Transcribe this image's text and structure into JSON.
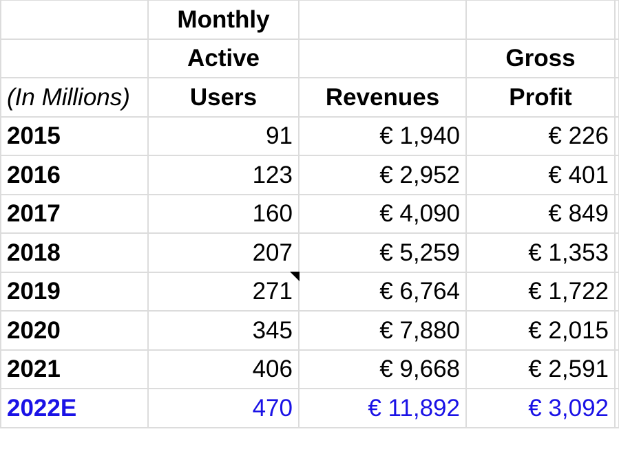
{
  "header": {
    "units_label": "(In Millions)",
    "columns": [
      {
        "line1": "Monthly",
        "line2": "Active",
        "line3": "Users"
      },
      {
        "line1": "",
        "line2": "",
        "line3": "Revenues"
      },
      {
        "line1": "",
        "line2": "Gross",
        "line3": "Profit"
      }
    ]
  },
  "rows": [
    {
      "year": "2015",
      "mau": "91",
      "revenues": "€ 1,940",
      "gross_profit": "€ 226"
    },
    {
      "year": "2016",
      "mau": "123",
      "revenues": "€ 2,952",
      "gross_profit": "€ 401"
    },
    {
      "year": "2017",
      "mau": "160",
      "revenues": "€ 4,090",
      "gross_profit": "€ 849"
    },
    {
      "year": "2018",
      "mau": "207",
      "revenues": "€ 5,259",
      "gross_profit": "€ 1,353"
    },
    {
      "year": "2019",
      "mau": "271",
      "revenues": "€ 6,764",
      "gross_profit": "€ 1,722",
      "mau_has_note": true
    },
    {
      "year": "2020",
      "mau": "345",
      "revenues": "€ 7,880",
      "gross_profit": "€ 2,015"
    },
    {
      "year": "2021",
      "mau": "406",
      "revenues": "€ 9,668",
      "gross_profit": "€ 2,591"
    },
    {
      "year": "2022E",
      "mau": "470",
      "revenues": "€ 11,892",
      "gross_profit": "€ 3,092",
      "estimate": true
    }
  ],
  "colors": {
    "grid_line": "#dcdcdc",
    "estimate_text": "#1a12e6",
    "note_marker": "#000000"
  }
}
